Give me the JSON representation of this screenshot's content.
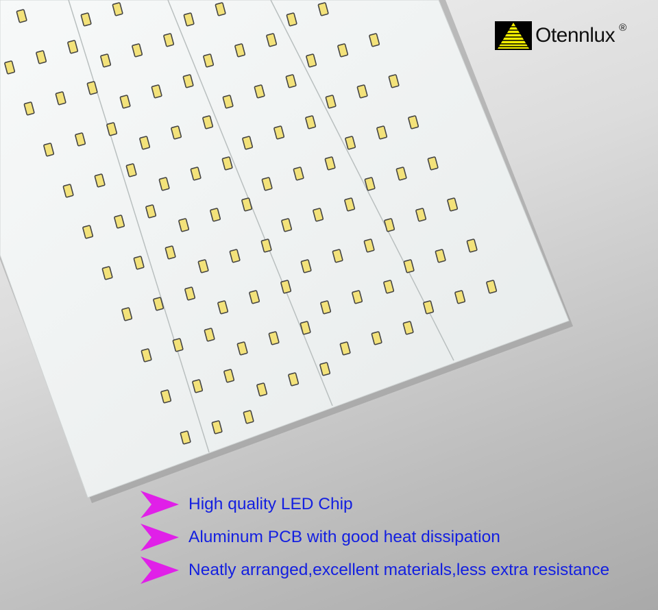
{
  "brand": {
    "name": "Otennlux",
    "registered": "®",
    "logo_colors": {
      "mark_bg": "#000000",
      "mark_fg": "#f5f000"
    }
  },
  "features": [
    {
      "icon": "magenta-arrow-icon",
      "text": "High quality LED Chip"
    },
    {
      "icon": "magenta-arrow-icon",
      "text": "Aluminum PCB with good heat dissipation"
    },
    {
      "icon": "magenta-arrow-icon",
      "text": "Neatly arranged,excellent materials,less extra resistance"
    }
  ],
  "colors": {
    "feature_text": "#1420e0",
    "arrow": "#e020e8",
    "pcb": "#f4f6f6",
    "led": "#f3e27a"
  }
}
